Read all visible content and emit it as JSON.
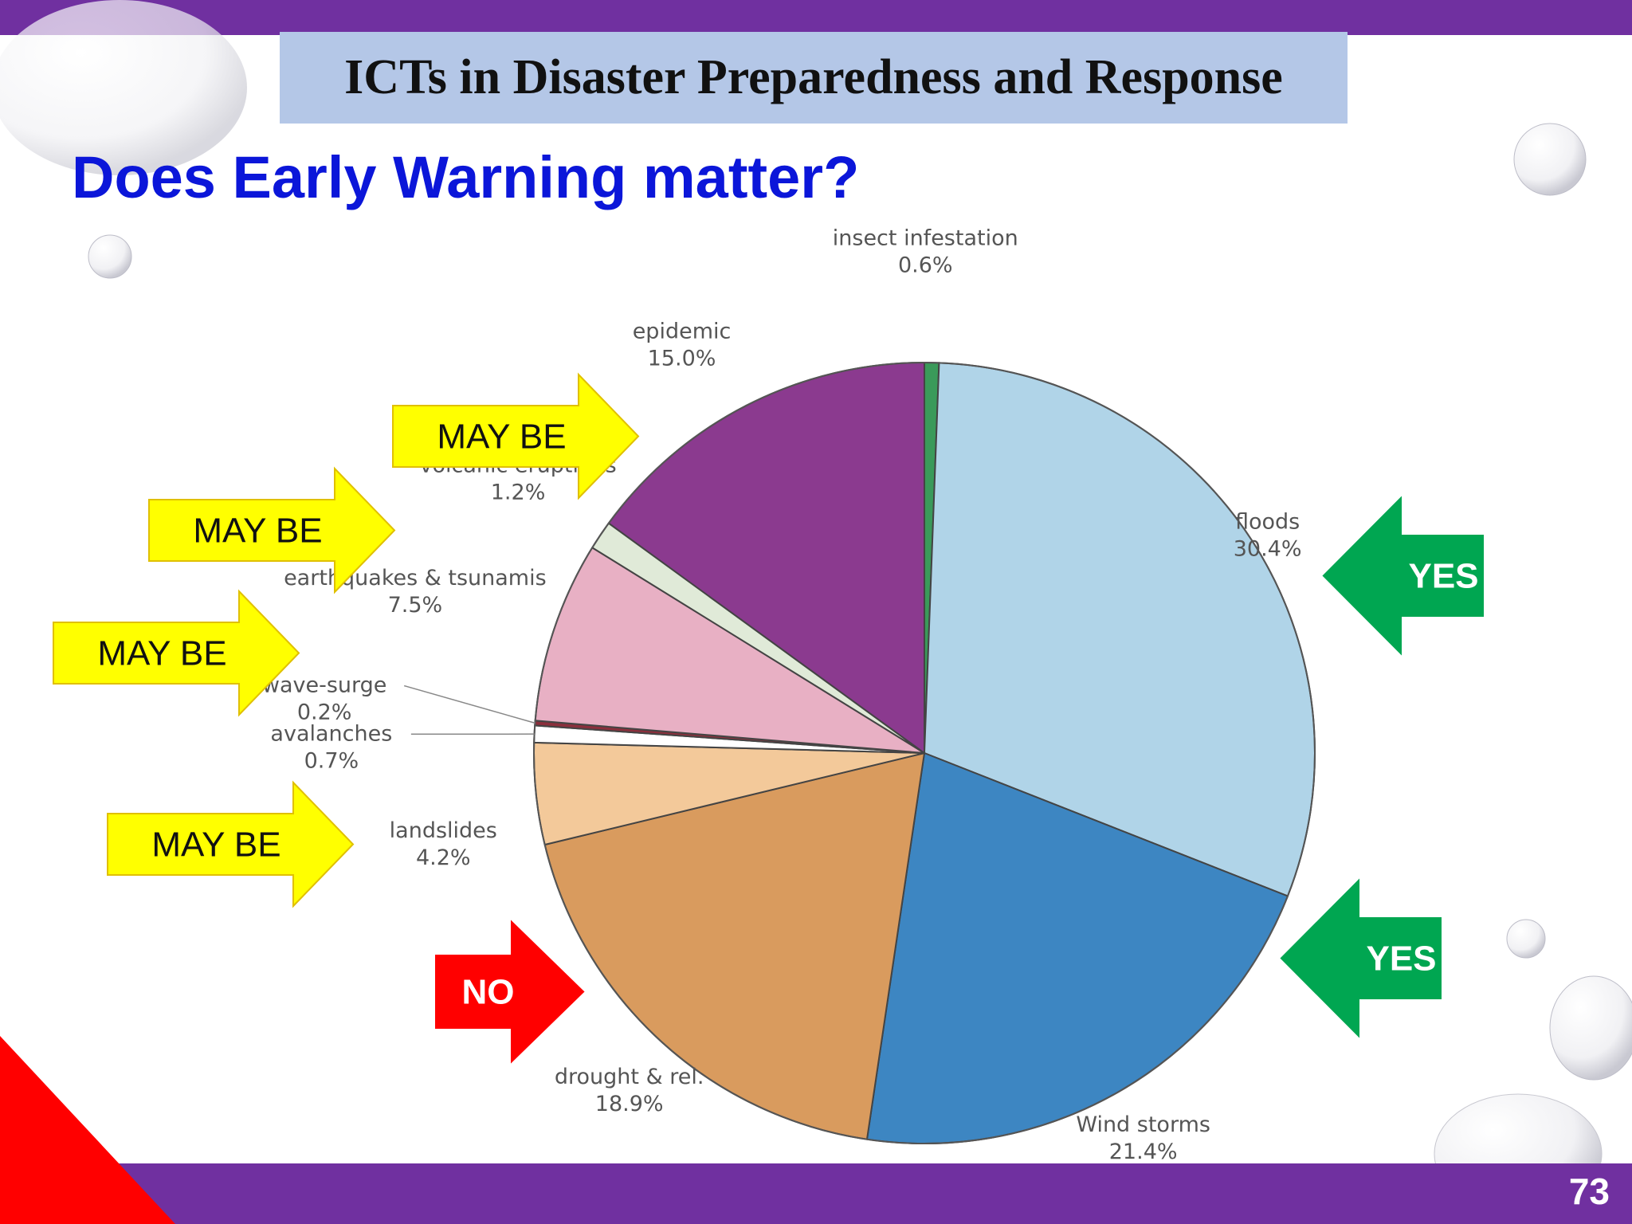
{
  "slide": {
    "banner_title": "ICTs in Disaster Preparedness and Response",
    "heading": "Does Early Warning matter?",
    "page_number": "73"
  },
  "colors": {
    "frame": "#7030a0",
    "banner_bg": "#b4c7e7",
    "heading": "#0b16d9",
    "arrow_yes": "#00a651",
    "arrow_maybe": "#ffff00",
    "arrow_no": "#ff0000"
  },
  "annotations": [
    {
      "text": "MAY BE",
      "kind": "maybe",
      "target": "epidemic"
    },
    {
      "text": "MAY BE",
      "kind": "maybe",
      "target": "volcanic eruptions"
    },
    {
      "text": "MAY BE",
      "kind": "maybe",
      "target": "earthquakes & tsunamis"
    },
    {
      "text": "MAY BE",
      "kind": "maybe",
      "target": "landslides"
    },
    {
      "text": "NO",
      "kind": "no",
      "target": "drought & rel."
    },
    {
      "text": "YES",
      "kind": "yes",
      "target": "floods"
    },
    {
      "text": "YES",
      "kind": "yes",
      "target": "Wind storms"
    }
  ],
  "chart_data": {
    "type": "pie",
    "title": "",
    "start": "12 o'clock, clockwise",
    "slices": [
      {
        "label": "insect infestation",
        "value": 0.6,
        "value_text": "0.6%",
        "color": "#3a9a5a"
      },
      {
        "label": "floods",
        "value": 30.4,
        "value_text": "30.4%",
        "color": "#b0d4e8"
      },
      {
        "label": "Wind storms",
        "value": 21.4,
        "value_text": "21.4%",
        "color": "#3d86c2"
      },
      {
        "label": "drought & rel.",
        "value": 18.9,
        "value_text": "18.9%",
        "color": "#d99b5e"
      },
      {
        "label": "landslides",
        "value": 4.2,
        "value_text": "4.2%",
        "color": "#f3c99a"
      },
      {
        "label": "avalanches",
        "value": 0.7,
        "value_text": "0.7%",
        "color": "#ffffff"
      },
      {
        "label": "wave-surge",
        "value": 0.2,
        "value_text": "0.2%",
        "color": "#8b2f3c"
      },
      {
        "label": "earthquakes & tsunamis",
        "value": 7.5,
        "value_text": "7.5%",
        "color": "#e8b0c4"
      },
      {
        "label": "volcanic eruptions",
        "value": 1.2,
        "value_text": "1.2%",
        "color": "#e0ead8"
      },
      {
        "label": "epidemic",
        "value": 15.0,
        "value_text": "15.0%",
        "color": "#8b3a8f"
      }
    ]
  }
}
